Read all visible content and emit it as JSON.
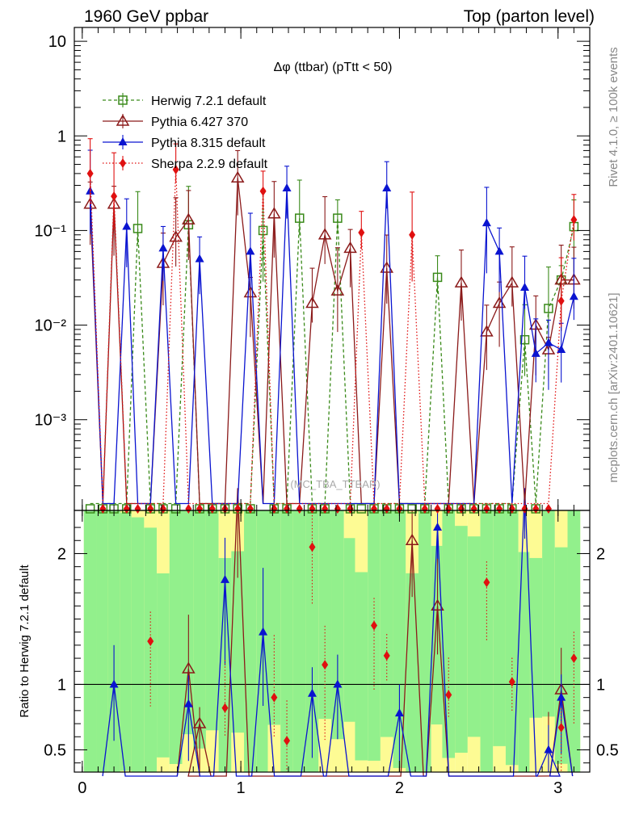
{
  "header": {
    "left_title": "1960 GeV ppbar",
    "right_title": "Top (parton level)"
  },
  "side_labels": {
    "rivet": "Rivet 4.1.0, ≥ 100k events",
    "mcplots": "mcplots.cern.ch [arXiv:2401.10621]"
  },
  "colors": {
    "herwig": "#3a8a1a",
    "pythia6": "#8b1a1a",
    "pythia8": "#0a14d0",
    "sherpa": "#e01010",
    "band_green": "#92f08c",
    "band_yellow": "#fdfb94"
  },
  "chart_data": [
    {
      "type": "line",
      "panel": "main",
      "title": "Δφ (ttbar) (pTtt < 50)",
      "watermark": "(MC_TBA_TTBAR)",
      "xlabel": "",
      "ylabel": "",
      "xlim": [
        -0.05,
        3.2
      ],
      "ylim": [
        0.00011,
        14
      ],
      "yscale": "log",
      "x_ticks": [
        0,
        1,
        2,
        3
      ],
      "y_tick_labels": [
        "10",
        "1",
        "10⁻¹",
        "10⁻²",
        "10⁻³"
      ],
      "legend": [
        "Herwig 7.2.1 default",
        "Pythia 6.427 370",
        "Pythia 8.315 default",
        "Sherpa 2.2.9 default"
      ],
      "x": [
        0.05,
        0.13,
        0.2,
        0.28,
        0.35,
        0.43,
        0.51,
        0.59,
        0.67,
        0.74,
        0.82,
        0.9,
        0.98,
        1.06,
        1.14,
        1.21,
        1.29,
        1.37,
        1.45,
        1.53,
        1.61,
        1.69,
        1.76,
        1.84,
        1.92,
        2.0,
        2.08,
        2.16,
        2.24,
        2.31,
        2.39,
        2.47,
        2.55,
        2.63,
        2.71,
        2.79,
        2.86,
        2.94,
        3.02,
        3.1
      ],
      "series": [
        {
          "name": "Herwig 7.2.1 default",
          "values": [
            0.00013,
            0.00013,
            0.00013,
            0.00013,
            0.105,
            0.00013,
            0.00013,
            0.00013,
            0.115,
            0.00013,
            0.00013,
            0.00013,
            0.00013,
            0.00013,
            0.1,
            0.00013,
            0.00013,
            0.135,
            0.00013,
            0.00013,
            0.135,
            0.00013,
            0.00013,
            0.00013,
            0.00013,
            0.00013,
            0.00013,
            0.00013,
            0.032,
            0.00013,
            0.00013,
            0.00013,
            0.00013,
            0.00013,
            0.00013,
            0.007,
            0.00013,
            0.015,
            0.03,
            0.11
          ]
        },
        {
          "name": "Pythia 6.427 370",
          "values": [
            0.19,
            0.00013,
            0.19,
            0.00013,
            0.00013,
            0.00013,
            0.045,
            0.085,
            0.13,
            0.00013,
            0.00013,
            0.00013,
            0.36,
            0.022,
            0.00013,
            0.15,
            0.00013,
            0.00013,
            0.017,
            0.09,
            0.023,
            0.065,
            0.00013,
            0.00013,
            0.04,
            0.00013,
            0.00013,
            0.00013,
            0.00013,
            0.00013,
            0.028,
            0.00013,
            0.0085,
            0.017,
            0.028,
            0.00013,
            0.01,
            0.0055,
            0.03,
            0.03
          ]
        },
        {
          "name": "Pythia 8.315 default",
          "values": [
            0.26,
            0.00013,
            0.00013,
            0.11,
            0.00013,
            0.00013,
            0.065,
            0.00013,
            0.00013,
            0.05,
            0.00013,
            0.00013,
            0.00013,
            0.06,
            0.00013,
            0.00013,
            0.28,
            0.00013,
            0.00013,
            0.00013,
            0.00013,
            0.00013,
            0.00013,
            0.00013,
            0.28,
            0.00013,
            0.00013,
            0.00013,
            0.00013,
            0.00013,
            0.00013,
            0.00013,
            0.12,
            0.06,
            0.00013,
            0.025,
            0.005,
            0.0065,
            0.0055,
            0.02
          ]
        },
        {
          "name": "Sherpa 2.2.9 default",
          "values": [
            0.4,
            0.00013,
            0.23,
            0.00013,
            0.00013,
            0.00013,
            0.00013,
            0.44,
            0.00013,
            0.00013,
            0.00013,
            0.00013,
            0.00013,
            0.00013,
            0.26,
            0.00013,
            0.00013,
            0.00013,
            0.00013,
            0.00013,
            0.00013,
            0.00013,
            0.095,
            0.00013,
            0.00013,
            0.00013,
            0.09,
            0.00013,
            0.00013,
            0.00013,
            0.00013,
            0.00013,
            0.00013,
            0.00013,
            0.00013,
            0.00013,
            0.00013,
            0.00013,
            0.018,
            0.13
          ]
        }
      ]
    },
    {
      "type": "line",
      "panel": "ratio",
      "xlabel": "",
      "ylabel": "Ratio to Herwig 7.2.1 default",
      "xlim": [
        -0.05,
        3.2
      ],
      "ylim": [
        0.33,
        2.33
      ],
      "x_ticks": [
        0,
        1,
        2,
        3
      ],
      "y_ticks": [
        0.5,
        1,
        2
      ],
      "reference_line": 1,
      "series": [
        {
          "name": "Pythia 6.427 370",
          "points": [
            [
              0.67,
              1.12
            ],
            [
              0.74,
              0.7
            ],
            [
              0.98,
              2.5
            ],
            [
              2.08,
              2.1
            ],
            [
              2.24,
              1.6
            ],
            [
              2.94,
              0.3
            ],
            [
              3.02,
              0.96
            ]
          ]
        },
        {
          "name": "Pythia 8.315 default",
          "points": [
            [
              0.2,
              1.0
            ],
            [
              0.67,
              0.85
            ],
            [
              0.9,
              1.8
            ],
            [
              1.14,
              1.4
            ],
            [
              1.45,
              0.93
            ],
            [
              1.61,
              1.0
            ],
            [
              2.0,
              0.78
            ],
            [
              2.24,
              2.2
            ],
            [
              2.79,
              2.5
            ],
            [
              2.94,
              0.5
            ],
            [
              3.02,
              0.9
            ]
          ]
        },
        {
          "name": "Sherpa 2.2.9 default",
          "points": [
            [
              0.43,
              1.33
            ],
            [
              0.9,
              0.82
            ],
            [
              1.21,
              0.9
            ],
            [
              1.29,
              0.57
            ],
            [
              1.45,
              2.05
            ],
            [
              1.53,
              1.15
            ],
            [
              1.84,
              1.45
            ],
            [
              1.92,
              1.22
            ],
            [
              2.31,
              0.92
            ],
            [
              2.55,
              1.78
            ],
            [
              2.71,
              1.02
            ],
            [
              3.02,
              0.67
            ],
            [
              3.1,
              1.2
            ]
          ]
        }
      ]
    }
  ]
}
